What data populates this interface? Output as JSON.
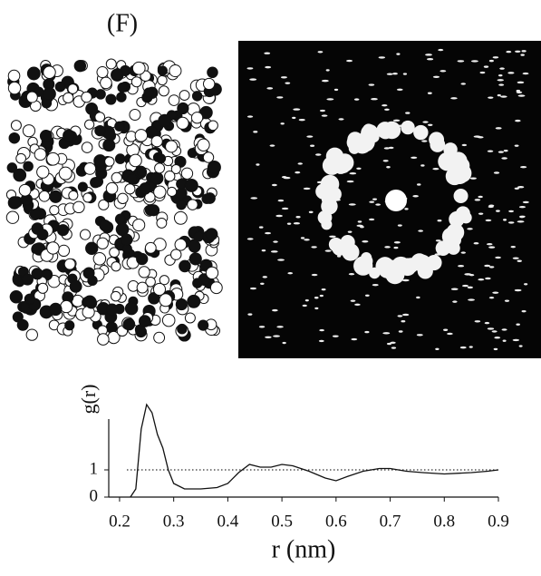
{
  "chart_data": {
    "type": "line",
    "title": "(F)",
    "x_label": "r (nm)",
    "y_label": "g(r)",
    "x": [
      0.22,
      0.23,
      0.24,
      0.25,
      0.26,
      0.27,
      0.28,
      0.29,
      0.3,
      0.32,
      0.35,
      0.38,
      0.4,
      0.42,
      0.44,
      0.46,
      0.48,
      0.5,
      0.52,
      0.55,
      0.58,
      0.6,
      0.62,
      0.65,
      0.68,
      0.7,
      0.73,
      0.76,
      0.8,
      0.85,
      0.88,
      0.9
    ],
    "series": [
      {
        "color": "#111111",
        "values": [
          0,
          0.3,
          2.5,
          3.4,
          3.1,
          2.3,
          1.8,
          1.0,
          0.5,
          0.3,
          0.3,
          0.35,
          0.5,
          0.9,
          1.2,
          1.1,
          1.1,
          1.2,
          1.15,
          0.95,
          0.7,
          0.6,
          0.75,
          0.95,
          1.05,
          1.05,
          0.95,
          0.9,
          0.85,
          0.9,
          0.95,
          1.0
        ]
      }
    ],
    "reference_line": 1,
    "xlim": [
      0.18,
      0.9
    ],
    "ylim": [
      0,
      3.5
    ],
    "xticks": [
      0.2,
      0.3,
      0.4,
      0.5,
      0.6,
      0.7,
      0.8,
      0.9
    ],
    "yticks": [
      0,
      1
    ]
  }
}
